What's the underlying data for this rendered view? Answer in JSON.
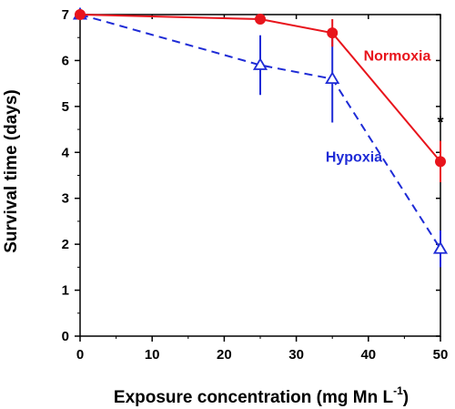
{
  "chart_data": {
    "type": "line",
    "xlabel_main": "Exposure concentration (mg Mn L",
    "xlabel_sup": "-1",
    "xlabel_end": ")",
    "ylabel": "Survival time (days)",
    "xlim": [
      0,
      50
    ],
    "ylim": [
      0,
      7
    ],
    "xticks": [
      0,
      10,
      20,
      30,
      40,
      50
    ],
    "yticks": [
      0,
      1,
      2,
      3,
      4,
      5,
      6,
      7
    ],
    "grid": false,
    "series": [
      {
        "name": "Normoxia",
        "color": "#e8141c",
        "line_style": "solid",
        "marker": "filled-circle",
        "x": [
          0,
          25,
          35,
          50
        ],
        "y": [
          7.0,
          6.9,
          6.6,
          3.8
        ],
        "err": [
          0,
          0,
          0.3,
          0.45
        ]
      },
      {
        "name": "Hypoxia",
        "color": "#1e2bd6",
        "line_style": "dashed",
        "marker": "open-triangle",
        "x": [
          0,
          25,
          35,
          50
        ],
        "y": [
          7.0,
          5.9,
          5.6,
          1.9
        ],
        "err": [
          0,
          0.65,
          0.95,
          0.4
        ]
      }
    ],
    "annotations": [
      {
        "text": "*",
        "x": 50
      }
    ]
  }
}
